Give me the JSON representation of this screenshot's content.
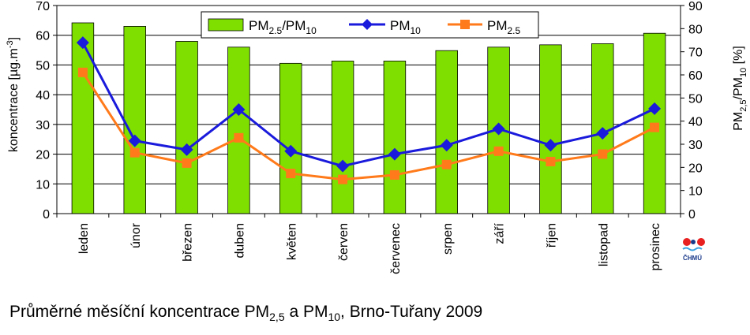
{
  "chart_data": {
    "type": "bar+line",
    "categories": [
      "leden",
      "únor",
      "březen",
      "duben",
      "květen",
      "červen",
      "červenec",
      "srpen",
      "září",
      "říjen",
      "listopad",
      "prosinec"
    ],
    "series": [
      {
        "name_main": "PM",
        "name_sub": "2.5",
        "name_tail": "/PM",
        "name_sub2": "10",
        "type": "bar",
        "axis": "right",
        "color": "#7fe000",
        "values": [
          82.5,
          81,
          74.5,
          72,
          65,
          66,
          66,
          70.5,
          72,
          73,
          73.5,
          78
        ]
      },
      {
        "name_main": "PM",
        "name_sub": "10",
        "name_tail": "",
        "name_sub2": "",
        "type": "line",
        "axis": "left",
        "color": "#1a1adc",
        "marker": "diamond",
        "values": [
          57.5,
          24.5,
          21.5,
          35,
          21,
          16,
          20,
          23,
          28.5,
          23,
          27,
          35.3
        ]
      },
      {
        "name_main": "PM",
        "name_sub": "2.5",
        "name_tail": "",
        "name_sub2": "",
        "type": "line",
        "axis": "left",
        "color": "#ff7a1a",
        "marker": "square",
        "values": [
          47.5,
          20.5,
          17,
          25.5,
          13.5,
          11.5,
          13,
          16.5,
          21,
          17.5,
          20,
          29
        ]
      }
    ],
    "ylabel_left": "koncentrace [µg.m",
    "ylabel_left_sup": "-3",
    "ylabel_left_tail": "]",
    "ylabel_right_main": "PM",
    "ylabel_right_sub": "2,5",
    "ylabel_right_mid": "/PM",
    "ylabel_right_sub2": "10",
    "ylabel_right_tail": " [%]",
    "ylim_left": [
      0,
      70
    ],
    "yticks_left": [
      0,
      10,
      20,
      30,
      40,
      50,
      60,
      70
    ],
    "ylim_right": [
      0,
      90
    ],
    "yticks_right": [
      0,
      10,
      20,
      30,
      40,
      50,
      60,
      70,
      80,
      90
    ],
    "grid": true,
    "legend": "top-center"
  },
  "caption": {
    "text1": "Průměrné měsíční koncentrace PM",
    "sub1": "2,5",
    "text2": " a PM",
    "sub2": "10",
    "text3": ", Brno-Tuřany 2009"
  },
  "logo": {
    "text": "ČHMÚ",
    "colors": [
      "#e82020",
      "#1a3a8a",
      "#3aa0e0"
    ]
  }
}
